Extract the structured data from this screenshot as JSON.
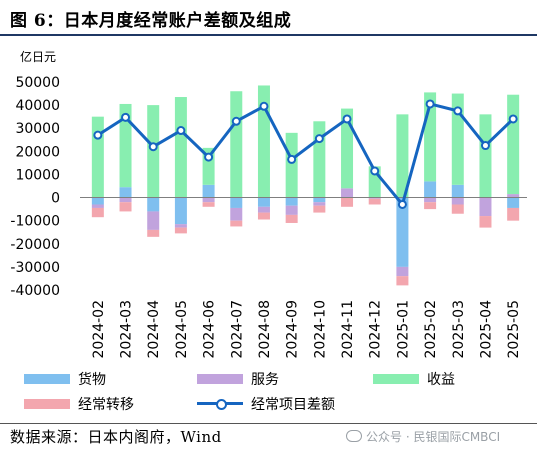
{
  "header": {
    "title": "图 6：日本月度经常账户差额及组成",
    "unit": "亿日元"
  },
  "footer": {
    "source": "数据来源：日本内阁府，Wind",
    "watermark": "公众号 · 民银国际CMBCI"
  },
  "colors": {
    "goods": "#7fbfef",
    "services": "#c1a3dd",
    "income": "#88eeb0",
    "transfers": "#f3a6ae",
    "balance": "#1565c0"
  },
  "chart_data": {
    "type": "bar",
    "stacked": true,
    "categories": [
      "2024-02",
      "2024-03",
      "2024-04",
      "2024-05",
      "2024-06",
      "2024-07",
      "2024-08",
      "2024-09",
      "2024-10",
      "2024-11",
      "2024-12",
      "2025-01",
      "2025-02",
      "2025-03",
      "2025-04",
      "2025-05"
    ],
    "series": [
      {
        "name": "货物",
        "type": "bar",
        "values": [
          -3000,
          0,
          -6000,
          -11500,
          0,
          -4500,
          -4000,
          -3500,
          -2000,
          0,
          0,
          -30000,
          0,
          0,
          0,
          -4500
        ]
      },
      {
        "name": "服务",
        "type": "bar",
        "values": [
          -1500,
          -2000,
          -8000,
          -1500,
          -2000,
          -5500,
          -2500,
          -4000,
          -1500,
          4000,
          -500,
          -4000,
          -2000,
          -3000,
          -8000,
          1500
        ]
      },
      {
        "name": "收益",
        "type": "bar",
        "values": [
          35000,
          36000,
          40000,
          43500,
          16000,
          46000,
          48500,
          28000,
          33000,
          34500,
          13500,
          36000,
          38500,
          39500,
          36000,
          43000
        ]
      },
      {
        "name": "经常转移",
        "type": "bar",
        "values": [
          -4000,
          -4000,
          -3000,
          -2500,
          -2000,
          -2500,
          -3000,
          -3500,
          -3000,
          -4000,
          -2500,
          -4000,
          -3000,
          -4000,
          -5000,
          -5500
        ]
      },
      {
        "name": "经常项目差额",
        "type": "line",
        "values": [
          27000,
          34700,
          22000,
          29000,
          17500,
          33000,
          39500,
          16500,
          25500,
          34000,
          11500,
          -3000,
          40500,
          37500,
          22500,
          34000
        ]
      }
    ],
    "positive_extra": {
      "货物": [
        0,
        4500,
        0,
        0,
        5500,
        0,
        0,
        0,
        0,
        0,
        0,
        0,
        7000,
        5500,
        0,
        0
      ]
    },
    "ylim": [
      -40000,
      50000
    ],
    "yticks": [
      -40000,
      -30000,
      -20000,
      -10000,
      0,
      10000,
      20000,
      30000,
      40000,
      50000
    ],
    "ylabel": "亿日元",
    "legend_position": "bottom",
    "grid": false
  }
}
